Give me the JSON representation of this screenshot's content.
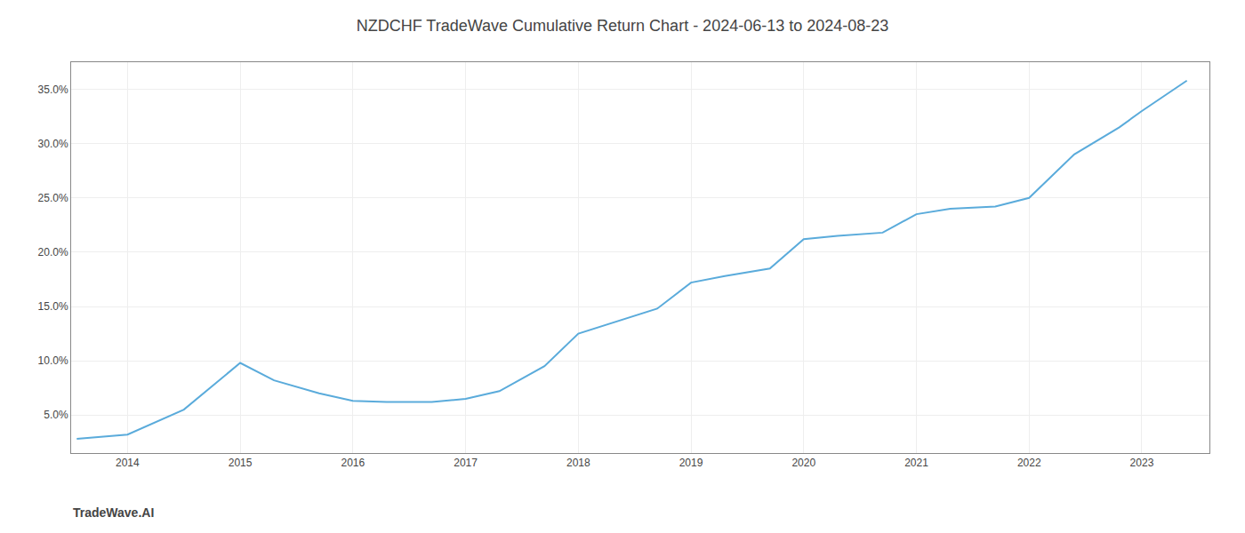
{
  "chart_data": {
    "type": "line",
    "title": "NZDCHF TradeWave Cumulative Return Chart - 2024-06-13 to 2024-08-23",
    "annotations": [
      "TradeWave.AI"
    ],
    "x": [
      2013.55,
      2014.0,
      2014.5,
      2015.0,
      2015.3,
      2015.7,
      2016.0,
      2016.3,
      2016.7,
      2017.0,
      2017.3,
      2017.7,
      2018.0,
      2018.3,
      2018.7,
      2019.0,
      2019.3,
      2019.7,
      2020.0,
      2020.3,
      2020.7,
      2021.0,
      2021.3,
      2021.7,
      2022.0,
      2022.4,
      2022.8,
      2023.0,
      2023.4
    ],
    "values": [
      2.8,
      3.2,
      5.5,
      9.8,
      8.2,
      7.0,
      6.3,
      6.2,
      6.2,
      6.5,
      7.2,
      9.5,
      12.5,
      13.5,
      14.8,
      17.2,
      17.8,
      18.5,
      21.2,
      21.5,
      21.8,
      23.5,
      24.0,
      24.2,
      25.0,
      29.0,
      31.5,
      33.0,
      35.8
    ],
    "color": "#5aabdb",
    "xlim": [
      2013.5,
      2023.6
    ],
    "xticks": [
      2014,
      2015,
      2016,
      2017,
      2018,
      2019,
      2020,
      2021,
      2022,
      2023
    ],
    "ylim": [
      1.5,
      37.5
    ],
    "yticks": [
      {
        "value": 5.0,
        "label": "5.0%"
      },
      {
        "value": 10.0,
        "label": "10.0%"
      },
      {
        "value": 15.0,
        "label": "15.0%"
      },
      {
        "value": 20.0,
        "label": "20.0%"
      },
      {
        "value": 25.0,
        "label": "25.0%"
      },
      {
        "value": 30.0,
        "label": "30.0%"
      },
      {
        "value": 35.0,
        "label": "35.0%"
      }
    ],
    "grid": true
  }
}
